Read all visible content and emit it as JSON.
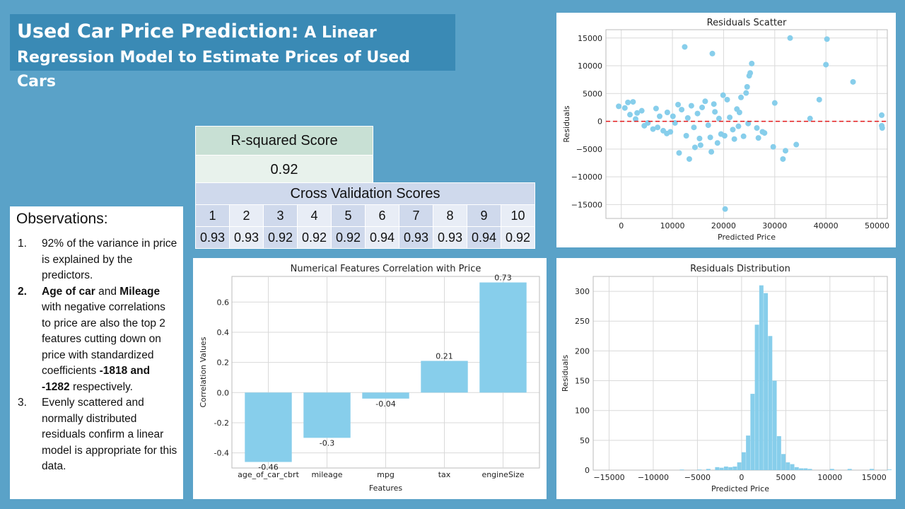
{
  "title": {
    "line1": "Used Car Price Prediction:",
    "line1b": " A Linear",
    "line2": "Regression Model to Estimate Prices of Used Cars"
  },
  "r2": {
    "header": "R-squared Score",
    "value": "0.92"
  },
  "cv": {
    "header": "Cross Validation Scores",
    "folds": [
      "1",
      "2",
      "3",
      "4",
      "5",
      "6",
      "7",
      "8",
      "9",
      "10"
    ],
    "scores": [
      "0.93",
      "0.93",
      "0.92",
      "0.92",
      "0.92",
      "0.94",
      "0.93",
      "0.93",
      "0.94",
      "0.92"
    ]
  },
  "observations": {
    "heading": "Observations:",
    "items": [
      {
        "num": "1.",
        "text": "92% of the variance in price is explained by the predictors."
      },
      {
        "num": "2.",
        "b1": "Age of car",
        "t1": " and ",
        "b2": "Mileage",
        "t2": " with negative correlations to price are also the top 2 features cutting down on price with standardized coefficients ",
        "b3": "-1818 and -1282",
        "t3": " respectively."
      },
      {
        "num": "3.",
        "text": "Evenly scattered and normally distributed residuals confirm a linear model is appropriate for this data."
      }
    ]
  },
  "colors": {
    "bar": "#87ceeb",
    "zero_line": "#e31a1c",
    "grid": "#d9d9d9"
  },
  "chart_data": [
    {
      "type": "bar",
      "title": "Numerical Features Correlation with Price",
      "xlabel": "Features",
      "ylabel": "Correlation Values",
      "categories": [
        "age_of_car_cbrt",
        "mileage",
        "mpg",
        "tax",
        "engineSize"
      ],
      "values": [
        -0.46,
        -0.3,
        -0.04,
        0.21,
        0.73
      ],
      "data_labels": [
        "-0.46",
        "-0.3",
        "-0.04",
        "0.21",
        "0.73"
      ],
      "yticks": [
        "-0.4",
        "-0.2",
        "0.0",
        "0.2",
        "0.4",
        "0.6"
      ],
      "ylim": [
        -0.5,
        0.77
      ],
      "grid": true
    },
    {
      "type": "scatter",
      "title": "Residuals Scatter",
      "xlabel": "Predicted Price",
      "ylabel": "Residuals",
      "xticks": [
        "0",
        "10000",
        "20000",
        "30000",
        "40000",
        "50000"
      ],
      "yticks": [
        "−15000",
        "−10000",
        "−5000",
        "0",
        "5000",
        "10000",
        "15000"
      ],
      "xlim": [
        -3000,
        52000
      ],
      "ylim": [
        -17500,
        16500
      ],
      "reference_line": 0,
      "grid": true,
      "points": [
        [
          12400,
          13400
        ],
        [
          17800,
          12200
        ],
        [
          33000,
          15000
        ],
        [
          40200,
          14800
        ],
        [
          40000,
          10200
        ],
        [
          45300,
          7100
        ],
        [
          25500,
          10400
        ],
        [
          25000,
          8200
        ],
        [
          25200,
          8700
        ],
        [
          24600,
          6200
        ],
        [
          30000,
          3300
        ],
        [
          38700,
          3900
        ],
        [
          36900,
          500
        ],
        [
          50900,
          1100
        ],
        [
          50900,
          -800
        ],
        [
          51000,
          -1200
        ],
        [
          34200,
          -4200
        ],
        [
          32100,
          -5300
        ],
        [
          31600,
          -6800
        ],
        [
          29700,
          -4600
        ],
        [
          28000,
          -2100
        ],
        [
          26800,
          -3000
        ],
        [
          20300,
          -15800
        ],
        [
          13300,
          -6800
        ],
        [
          14400,
          -4700
        ],
        [
          17600,
          -5500
        ],
        [
          11300,
          -5700
        ],
        [
          8900,
          -2200
        ],
        [
          15500,
          -4300
        ],
        [
          18800,
          -3900
        ],
        [
          -500,
          2700
        ],
        [
          700,
          2400
        ],
        [
          1300,
          3400
        ],
        [
          2300,
          3500
        ],
        [
          1700,
          1200
        ],
        [
          3100,
          1500
        ],
        [
          4500,
          -800
        ],
        [
          6200,
          -1400
        ],
        [
          7500,
          900
        ],
        [
          9000,
          1600
        ],
        [
          10500,
          -300
        ],
        [
          11800,
          2100
        ],
        [
          13000,
          600
        ],
        [
          14200,
          -1100
        ],
        [
          15800,
          2500
        ],
        [
          17000,
          -700
        ],
        [
          18300,
          1700
        ],
        [
          19500,
          -2300
        ],
        [
          20700,
          3900
        ],
        [
          21800,
          -1500
        ],
        [
          22600,
          2200
        ],
        [
          23400,
          4300
        ],
        [
          23900,
          -2700
        ],
        [
          24400,
          5100
        ],
        [
          22100,
          -3200
        ],
        [
          19900,
          4700
        ],
        [
          16400,
          3600
        ],
        [
          12700,
          -2600
        ],
        [
          9600,
          -1900
        ],
        [
          6800,
          2300
        ],
        [
          5200,
          -300
        ],
        [
          8200,
          -1700
        ],
        [
          21200,
          700
        ],
        [
          17400,
          -2900
        ],
        [
          14900,
          1400
        ],
        [
          11100,
          3000
        ],
        [
          20200,
          -2600
        ],
        [
          23100,
          1600
        ],
        [
          24800,
          -400
        ],
        [
          26500,
          -1200
        ],
        [
          27600,
          -1900
        ],
        [
          15300,
          -3100
        ],
        [
          18100,
          3100
        ],
        [
          13700,
          2800
        ],
        [
          10100,
          900
        ],
        [
          7100,
          -1100
        ],
        [
          4000,
          1900
        ],
        [
          2800,
          400
        ],
        [
          19100,
          500
        ],
        [
          22900,
          -900
        ]
      ]
    },
    {
      "type": "bar",
      "subtype": "histogram",
      "title": "Residuals Distribution",
      "xlabel": "Predicted Price",
      "ylabel": "Residuals",
      "xticks": [
        "−15000",
        "−10000",
        "−5000",
        "0",
        "5000",
        "10000",
        "15000"
      ],
      "yticks": [
        "0",
        "50",
        "100",
        "150",
        "200",
        "250",
        "300"
      ],
      "xlim": [
        -16800,
        16500
      ],
      "ylim": [
        0,
        325
      ],
      "bin_width": 500,
      "bins_start": -7000,
      "counts": [
        1,
        0,
        0,
        0,
        1,
        0,
        2,
        0,
        5,
        4,
        6,
        5,
        6,
        13,
        30,
        58,
        128,
        244,
        310,
        297,
        225,
        150,
        57,
        27,
        13,
        10,
        5,
        3,
        3,
        2,
        0,
        0,
        0,
        0,
        2,
        0,
        0,
        0,
        2,
        0,
        0,
        0,
        0,
        2,
        0,
        0,
        0,
        1,
        0,
        0,
        0,
        0,
        0,
        0,
        0,
        0,
        1,
        0,
        0,
        0,
        0,
        0,
        0,
        0,
        0,
        0,
        0,
        0,
        0,
        0,
        0,
        0,
        0,
        0,
        0,
        0,
        0,
        0,
        0,
        0,
        0,
        0,
        0,
        0,
        1,
        0,
        0,
        0,
        0,
        0,
        0,
        0,
        0,
        0,
        0,
        0,
        0,
        0,
        0,
        0,
        0,
        0,
        0,
        0,
        0,
        0,
        0,
        0,
        0,
        0,
        0,
        0,
        0,
        0,
        0,
        0,
        0,
        0,
        0,
        0,
        0,
        0,
        0,
        0,
        0,
        0,
        0,
        0,
        0,
        0,
        0,
        0,
        0,
        0,
        0,
        0,
        0,
        0,
        0,
        0,
        0,
        0,
        0,
        0,
        1
      ],
      "grid": true
    }
  ]
}
